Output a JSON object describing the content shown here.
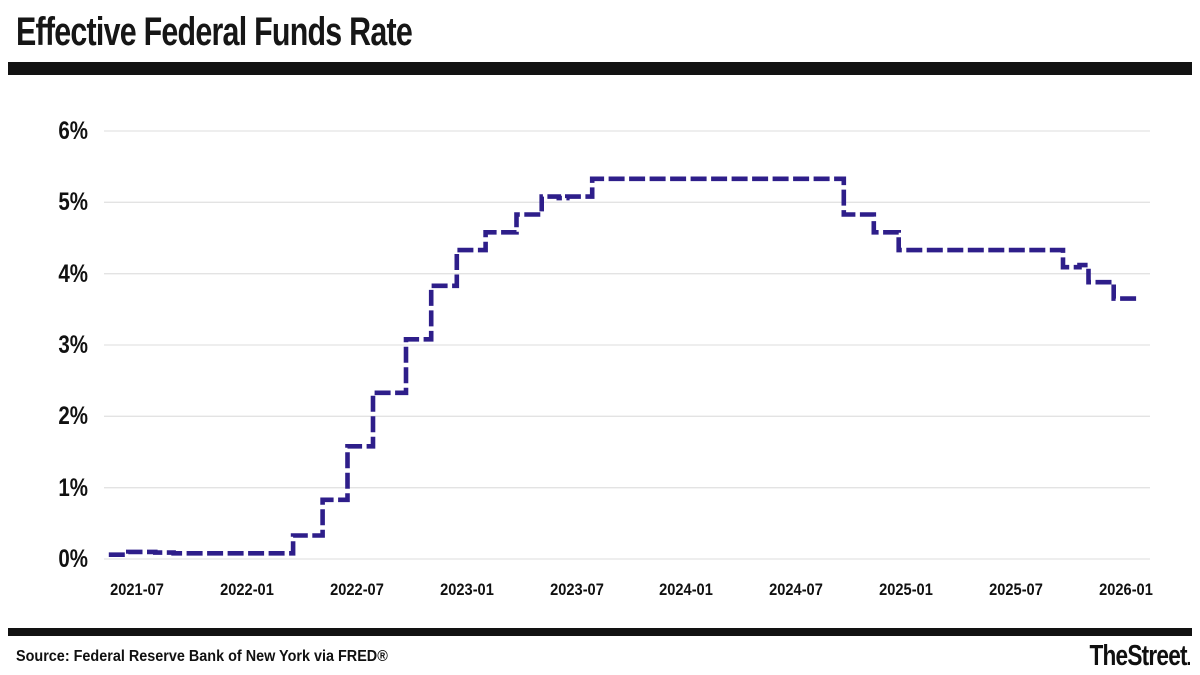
{
  "header": {
    "title": "Effective Federal Funds Rate"
  },
  "footer": {
    "source": "Source: Federal Reserve Bank of New York via FRED®",
    "brand": "TheStreet",
    "brand_dot": "."
  },
  "chart_data": {
    "type": "line",
    "subtype": "step",
    "title": "Effective Federal Funds Rate",
    "unit": "percent",
    "line_color": "#2e1e8a",
    "grid_color": "#e3e3e3",
    "grid": "horizontal",
    "legend": "none",
    "ylim": [
      0,
      6
    ],
    "y_ticks": [
      "0%",
      "1%",
      "2%",
      "3%",
      "4%",
      "5%",
      "6%"
    ],
    "x_ticks": [
      "2021-07",
      "2022-01",
      "2022-07",
      "2023-01",
      "2023-07",
      "2024-01",
      "2024-07",
      "2025-01",
      "2025-07",
      "2026-01"
    ],
    "x_range_start": "2021-05-15",
    "x_range_end": "2026-01-23",
    "series_name": "Effective Federal Funds Rate (%)",
    "series": [
      {
        "date": "2021-05-15",
        "value": 0.06
      },
      {
        "date": "2021-06-17",
        "value": 0.1
      },
      {
        "date": "2021-08-01",
        "value": 0.09
      },
      {
        "date": "2021-09-01",
        "value": 0.08
      },
      {
        "date": "2021-11-01",
        "value": 0.08
      },
      {
        "date": "2022-01-01",
        "value": 0.08
      },
      {
        "date": "2022-03-17",
        "value": 0.33
      },
      {
        "date": "2022-05-05",
        "value": 0.83
      },
      {
        "date": "2022-06-16",
        "value": 1.58
      },
      {
        "date": "2022-07-28",
        "value": 2.33
      },
      {
        "date": "2022-09-22",
        "value": 3.08
      },
      {
        "date": "2022-11-03",
        "value": 3.83
      },
      {
        "date": "2022-12-15",
        "value": 4.33
      },
      {
        "date": "2023-02-02",
        "value": 4.58
      },
      {
        "date": "2023-03-23",
        "value": 4.83
      },
      {
        "date": "2023-05-04",
        "value": 5.08
      },
      {
        "date": "2023-06-02",
        "value": 5.06
      },
      {
        "date": "2023-06-16",
        "value": 5.08
      },
      {
        "date": "2023-07-27",
        "value": 5.33
      },
      {
        "date": "2024-09-19",
        "value": 4.83
      },
      {
        "date": "2024-11-08",
        "value": 4.58
      },
      {
        "date": "2024-12-19",
        "value": 4.33
      },
      {
        "date": "2025-09-18",
        "value": 4.09
      },
      {
        "date": "2025-10-15",
        "value": 4.12
      },
      {
        "date": "2025-10-30",
        "value": 3.88
      },
      {
        "date": "2025-12-11",
        "value": 3.65
      }
    ]
  }
}
